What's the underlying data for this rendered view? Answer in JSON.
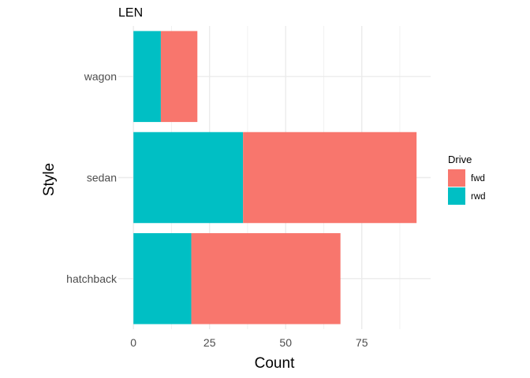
{
  "chart_data": {
    "type": "bar",
    "orientation": "horizontal",
    "stacked": true,
    "title": "LEN",
    "xlabel": "Count",
    "ylabel": "Style",
    "categories": [
      "hatchback",
      "sedan",
      "wagon"
    ],
    "series": [
      {
        "name": "fwd",
        "color": "#F8766D",
        "values": [
          49,
          57,
          12
        ]
      },
      {
        "name": "rwd",
        "color": "#00BFC4",
        "values": [
          19,
          36,
          9
        ]
      }
    ],
    "xlim": [
      0,
      93
    ],
    "xticks": [
      0,
      25,
      50,
      75
    ],
    "grid": true,
    "legend": {
      "title": "Drive",
      "position": "right"
    }
  }
}
